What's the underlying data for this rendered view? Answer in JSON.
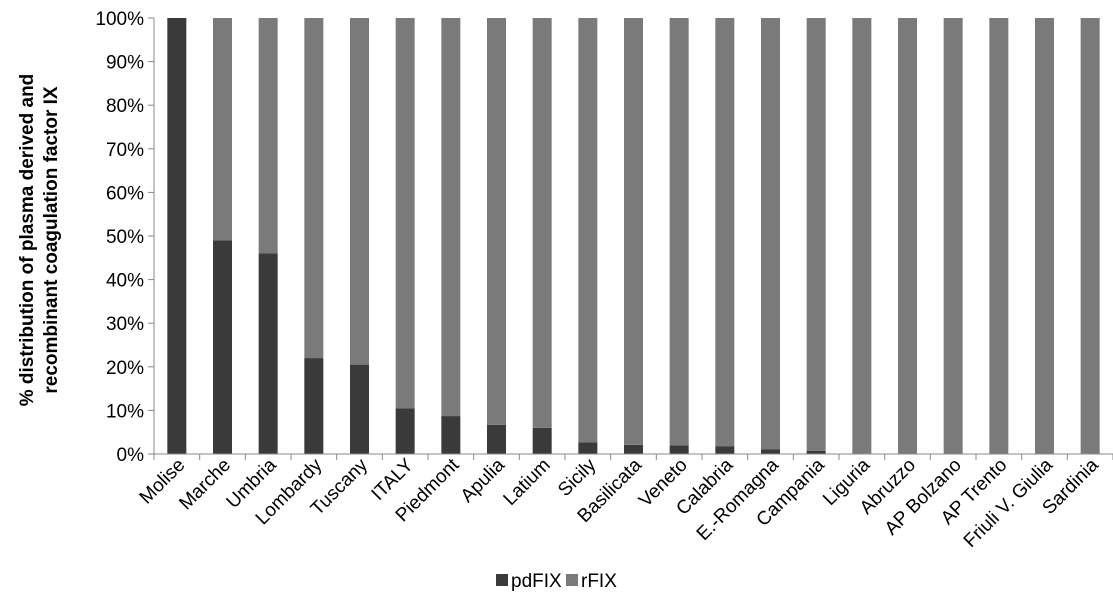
{
  "chart_data": {
    "type": "bar",
    "stacked": true,
    "percent": true,
    "categories": [
      "Molise",
      "Marche",
      "Umbria",
      "Lombardy",
      "Tuscany",
      "ITALY",
      "Piedmont",
      "Apulia",
      "Latium",
      "Sicily",
      "Basilicata",
      "Veneto",
      "Calabria",
      "E.-Romagna",
      "Campania",
      "Liguria",
      "Abruzzo",
      "AP Bolzano",
      "AP Trento",
      "Friuli V. Giulia",
      "Sardinia"
    ],
    "series": [
      {
        "name": "pdFIX",
        "color": "#3a3a3a",
        "values": [
          100,
          49,
          46,
          22,
          20.5,
          10.5,
          8.7,
          6.7,
          6,
          2.7,
          2.1,
          2,
          1.8,
          1.1,
          0.7,
          0,
          0,
          0,
          0,
          0,
          0
        ]
      },
      {
        "name": "rFIX",
        "color": "#7a7a7a",
        "values": [
          0,
          51,
          54,
          78,
          79.5,
          89.5,
          91.3,
          93.3,
          94,
          97.3,
          97.9,
          98,
          98.2,
          98.9,
          99.3,
          100,
          100,
          100,
          100,
          100,
          100
        ]
      }
    ],
    "ylabel": "% distribution of plasma derived and recombinant coagulation factor IX",
    "ylabel_lines": [
      "% distribution of plasma derived and",
      "recombinant coagulation factor IX"
    ],
    "xlabel": "",
    "ylim": [
      0,
      100
    ],
    "yticks": [
      "0%",
      "10%",
      "20%",
      "30%",
      "40%",
      "50%",
      "60%",
      "70%",
      "80%",
      "90%",
      "100%"
    ],
    "grid": false,
    "legend_position": "bottom"
  }
}
